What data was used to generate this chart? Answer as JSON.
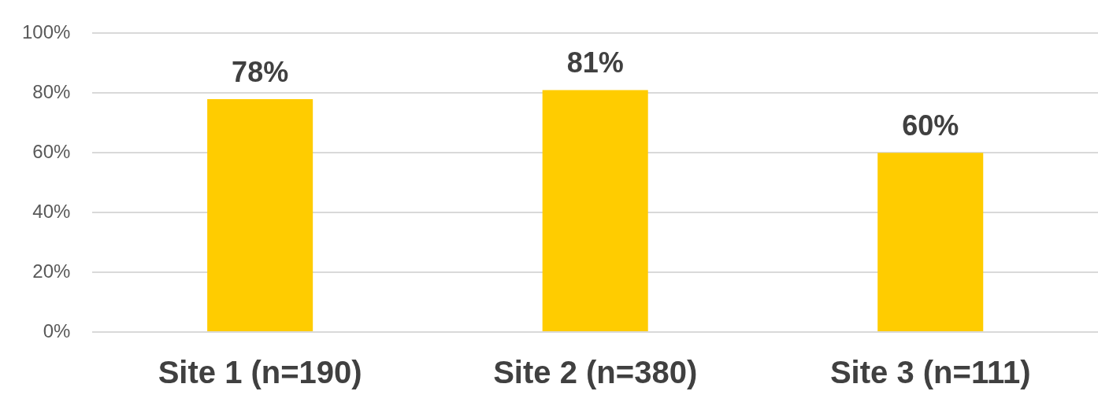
{
  "chart_data": {
    "type": "bar",
    "categories": [
      "Site 1 (n=190)",
      "Site 2 (n=380)",
      "Site 3 (n=111)"
    ],
    "values": [
      78,
      81,
      60
    ],
    "value_labels": [
      "78%",
      "81%",
      "60%"
    ],
    "color": "#ffcc00",
    "ylim": [
      0,
      100
    ],
    "yticks": [
      {
        "value": 0,
        "label": "0%"
      },
      {
        "value": 20,
        "label": "20%"
      },
      {
        "value": 40,
        "label": "40%"
      },
      {
        "value": 60,
        "label": "60%"
      },
      {
        "value": 80,
        "label": "80%"
      },
      {
        "value": 100,
        "label": "100%"
      }
    ],
    "grid": "y",
    "legend": false
  }
}
